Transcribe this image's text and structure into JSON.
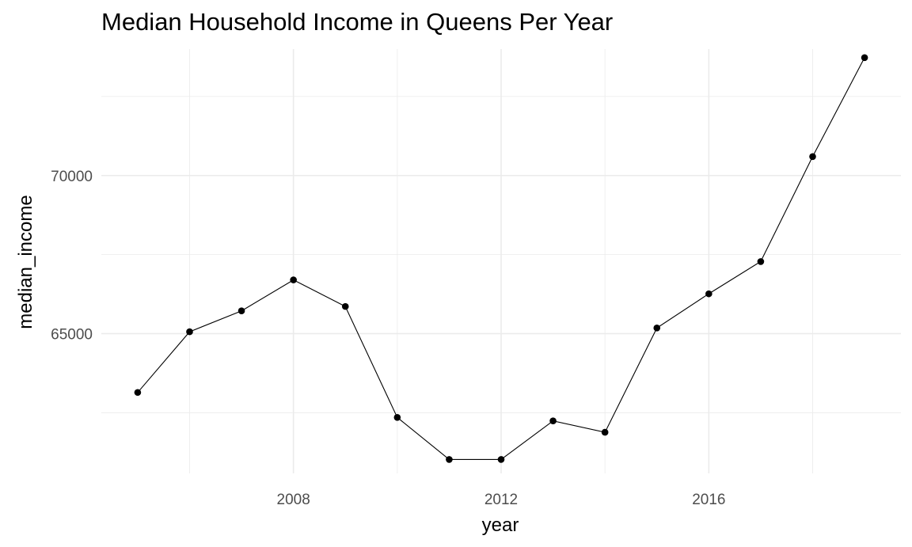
{
  "chart_data": {
    "type": "line",
    "title": "Median Household Income in Queens Per Year",
    "xlabel": "year",
    "ylabel": "median_income",
    "x_ticks": [
      2008,
      2012,
      2016
    ],
    "y_ticks": [
      65000,
      70000
    ],
    "xlim": [
      2004.3,
      2019.7
    ],
    "ylim": [
      60580,
      74000
    ],
    "grid": true,
    "legend": "none",
    "colors": {
      "line": "#000000",
      "grid": "#ebebeb",
      "tick_text": "#4d4d4d"
    },
    "series": [
      {
        "x": [
          2005,
          2006,
          2007,
          2008,
          2009,
          2010,
          2011,
          2012,
          2013,
          2014,
          2015,
          2016,
          2017,
          2018,
          2019
        ],
        "values": [
          63140,
          65060,
          65720,
          66700,
          65860,
          62350,
          61020,
          61020,
          62240,
          61880,
          65180,
          66260,
          67280,
          70600,
          73730
        ]
      }
    ]
  }
}
